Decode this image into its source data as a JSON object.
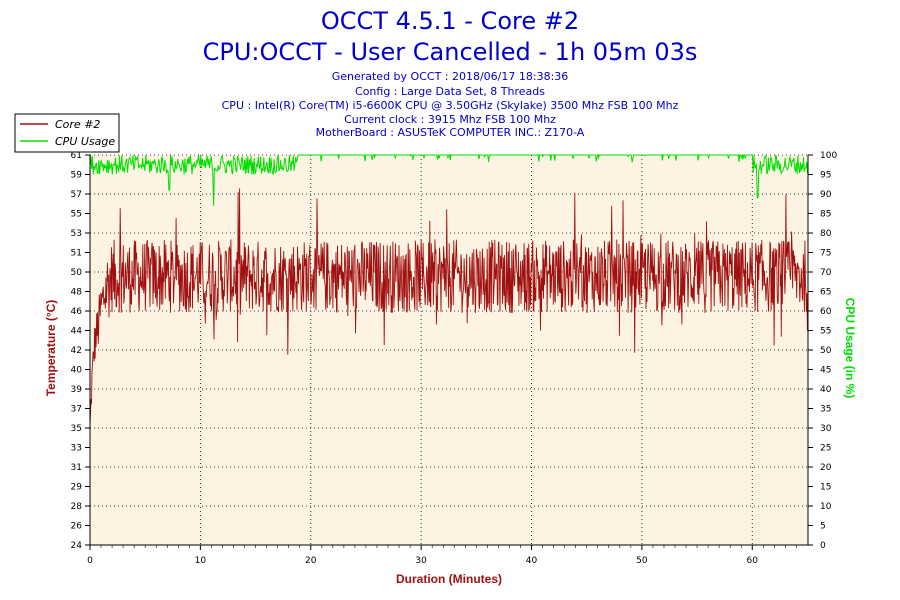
{
  "header": {
    "title": "OCCT 4.5.1 - Core #2",
    "subtitle": "CPU:OCCT - User Cancelled - 1h 05m 03s",
    "info_lines": [
      "Generated by OCCT : 2018/06/17 18:38:36",
      "Config : Large Data Set, 8 Threads",
      "CPU : Intel(R) Core(TM) i5-6600K CPU @ 3.50GHz (Skylake) 3500 Mhz FSB 100 Mhz",
      "Current clock : 3915 Mhz FSB 100 Mhz",
      "MotherBoard : ASUSTeK COMPUTER INC.: Z170-A"
    ]
  },
  "colors": {
    "temperature": "#a01010",
    "cpu_usage": "#00e000",
    "plot_bg": "#fdf3e3",
    "title": "#0000cc"
  },
  "chart_data": {
    "type": "line",
    "title": "OCCT 4.5.1 - Core #2",
    "xlabel": "Duration (Minutes)",
    "ylabel_left": "Temperature (°C)",
    "ylabel_right": "CPU Usage (in %)",
    "xlim": [
      0,
      65.05
    ],
    "ylim_left": [
      24,
      61
    ],
    "ylim_right": [
      0,
      100
    ],
    "x_ticks": [
      0,
      10,
      20,
      30,
      40,
      50,
      60
    ],
    "y_left_ticks": [
      24,
      26,
      28,
      29,
      31,
      33,
      35,
      37,
      39,
      40,
      42,
      44,
      46,
      48,
      50,
      51,
      53,
      55,
      57,
      59,
      61
    ],
    "y_right_ticks": [
      0,
      5,
      10,
      15,
      20,
      25,
      30,
      35,
      40,
      45,
      50,
      55,
      60,
      65,
      70,
      75,
      80,
      85,
      90,
      95,
      100
    ],
    "legend_position": "top-left",
    "grid": true,
    "series": [
      {
        "name": "Core #2",
        "axis": "left",
        "x": [
          0,
          0.2,
          0.4,
          0.7,
          1.0,
          1.5,
          2,
          3,
          4,
          5,
          6,
          7,
          8,
          9,
          10,
          12,
          14,
          16,
          18,
          20,
          22,
          24,
          26,
          28,
          30,
          32,
          34,
          36,
          38,
          40,
          42,
          44,
          46,
          48,
          50,
          52,
          54,
          56,
          58,
          60,
          61,
          62,
          63,
          64,
          65
        ],
        "values": [
          35,
          40,
          43,
          45,
          46,
          48,
          50,
          49,
          50,
          49,
          50,
          49,
          50,
          49,
          50,
          49,
          50,
          49,
          50,
          50,
          49,
          50,
          49,
          50,
          49,
          50,
          49,
          50,
          49,
          50,
          49,
          50,
          49,
          50,
          49,
          50,
          49,
          50,
          49,
          50,
          49,
          50,
          49,
          50,
          49
        ],
        "band_low": [
          34,
          38,
          41,
          42,
          44,
          45,
          46,
          46,
          46,
          46,
          46,
          46,
          46,
          46,
          46,
          46,
          46,
          46,
          46,
          46,
          46,
          46,
          46,
          46,
          46,
          46,
          46,
          46,
          46,
          46,
          46,
          46,
          46,
          46,
          46,
          46,
          46,
          46,
          46,
          46,
          46,
          46,
          46,
          46,
          46
        ],
        "band_high": [
          36,
          42,
          45,
          47,
          49,
          52,
          53,
          53,
          53,
          53,
          53,
          53,
          53,
          53,
          53,
          53,
          53,
          53,
          53,
          53,
          53,
          53,
          53,
          53,
          53,
          53,
          53,
          53,
          53,
          53,
          53,
          53,
          53,
          53,
          53,
          53,
          53,
          53,
          53,
          53,
          53,
          53,
          53,
          53,
          53
        ],
        "peak_max": 58,
        "dip_min": 42
      },
      {
        "name": "CPU Usage",
        "axis": "right",
        "x": [
          0,
          1,
          2,
          5,
          8,
          10,
          11,
          12,
          15,
          18,
          19,
          20,
          25,
          30,
          35,
          40,
          45,
          50,
          55,
          60,
          60.5,
          61,
          62,
          63,
          64,
          65
        ],
        "values": [
          97,
          97,
          97,
          97,
          97,
          97,
          95,
          97,
          97,
          97,
          100,
          100,
          100,
          100,
          100,
          100,
          100,
          100,
          100,
          100,
          96,
          97,
          98,
          98,
          98,
          98
        ],
        "band_low": 95,
        "band_high": 100,
        "dips": [
          {
            "x": 7.2,
            "value": 91
          },
          {
            "x": 11.2,
            "value": 87
          },
          {
            "x": 60.5,
            "value": 89
          }
        ]
      }
    ]
  }
}
